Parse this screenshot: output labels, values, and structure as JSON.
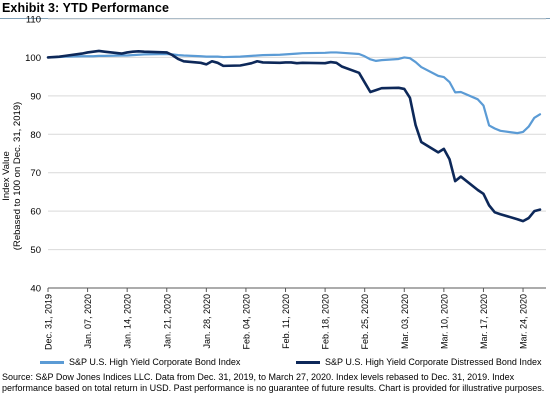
{
  "title": "Exhibit 3: YTD Performance",
  "source": "Source: S&P Dow Jones Indices LLC. Data from Dec. 31, 2019, to March 27, 2020. Index levels rebased to Dec. 31, 2019. Index performance based on total return in USD. Past performance is no guarantee of future results. Chart is provided for illustrative purposes.",
  "colors": {
    "series_light": "#5b9bd5",
    "series_dark": "#0d2859",
    "grid": "#d9d9d9",
    "axis": "#595959"
  },
  "chart_data": {
    "type": "line",
    "ylabel": "Index Value\n(Rebased to 100 on Dec. 31, 2019)",
    "xlabel": "",
    "ylim": [
      40,
      110
    ],
    "yticks": [
      40,
      50,
      60,
      70,
      80,
      90,
      100,
      110
    ],
    "grid": "horizontal",
    "legend_position": "bottom",
    "x": [
      "2019-12-31",
      "2020-01-02",
      "2020-01-03",
      "2020-01-06",
      "2020-01-07",
      "2020-01-08",
      "2020-01-09",
      "2020-01-10",
      "2020-01-13",
      "2020-01-14",
      "2020-01-15",
      "2020-01-16",
      "2020-01-17",
      "2020-01-21",
      "2020-01-22",
      "2020-01-23",
      "2020-01-24",
      "2020-01-27",
      "2020-01-28",
      "2020-01-29",
      "2020-01-30",
      "2020-01-31",
      "2020-02-03",
      "2020-02-04",
      "2020-02-05",
      "2020-02-06",
      "2020-02-07",
      "2020-02-10",
      "2020-02-11",
      "2020-02-12",
      "2020-02-13",
      "2020-02-14",
      "2020-02-18",
      "2020-02-19",
      "2020-02-20",
      "2020-02-21",
      "2020-02-24",
      "2020-02-25",
      "2020-02-26",
      "2020-02-27",
      "2020-02-28",
      "2020-03-02",
      "2020-03-03",
      "2020-03-04",
      "2020-03-05",
      "2020-03-06",
      "2020-03-09",
      "2020-03-10",
      "2020-03-11",
      "2020-03-12",
      "2020-03-13",
      "2020-03-16",
      "2020-03-17",
      "2020-03-18",
      "2020-03-19",
      "2020-03-20",
      "2020-03-23",
      "2020-03-24",
      "2020-03-25",
      "2020-03-26",
      "2020-03-27"
    ],
    "xticks": [
      {
        "date": "2019-12-31",
        "label": "Dec. 31, 2019"
      },
      {
        "date": "2020-01-07",
        "label": "Jan. 07, 2020"
      },
      {
        "date": "2020-01-14",
        "label": "Jan. 14, 2020"
      },
      {
        "date": "2020-01-21",
        "label": "Jan. 21, 2020"
      },
      {
        "date": "2020-01-28",
        "label": "Jan. 28, 2020"
      },
      {
        "date": "2020-02-04",
        "label": "Feb. 04, 2020"
      },
      {
        "date": "2020-02-11",
        "label": "Feb. 11, 2020"
      },
      {
        "date": "2020-02-18",
        "label": "Feb. 18, 2020"
      },
      {
        "date": "2020-02-25",
        "label": "Feb. 25, 2020"
      },
      {
        "date": "2020-03-03",
        "label": "Mar. 03, 2020"
      },
      {
        "date": "2020-03-10",
        "label": "Mar. 10, 2020"
      },
      {
        "date": "2020-03-17",
        "label": "Mar. 17, 2020"
      },
      {
        "date": "2020-03-24",
        "label": "Mar. 24, 2020"
      }
    ],
    "series": [
      {
        "name": "S&P U.S. High Yield Corporate Bond Index",
        "color": "#5b9bd5",
        "values": [
          100.0,
          100.1,
          100.2,
          100.3,
          100.3,
          100.3,
          100.4,
          100.4,
          100.5,
          100.5,
          100.6,
          100.7,
          100.8,
          100.9,
          100.8,
          100.6,
          100.5,
          100.3,
          100.2,
          100.2,
          100.2,
          100.1,
          100.2,
          100.3,
          100.4,
          100.5,
          100.6,
          100.7,
          100.8,
          100.9,
          101.0,
          101.1,
          101.2,
          101.3,
          101.3,
          101.2,
          100.9,
          100.3,
          99.5,
          99.1,
          99.3,
          99.6,
          100.0,
          99.8,
          98.8,
          97.5,
          95.2,
          94.9,
          93.6,
          90.9,
          91.0,
          89.1,
          87.5,
          82.3,
          81.5,
          80.9,
          80.3,
          80.6,
          82.0,
          84.3,
          85.2
        ]
      },
      {
        "name": "S&P U.S. High Yield Corporate Distressed Bond Index",
        "color": "#0d2859",
        "values": [
          100.0,
          100.2,
          100.4,
          101.0,
          101.3,
          101.5,
          101.7,
          101.5,
          101.0,
          101.3,
          101.5,
          101.6,
          101.5,
          101.3,
          100.6,
          99.6,
          99.0,
          98.6,
          98.2,
          99.0,
          98.6,
          97.8,
          97.9,
          98.2,
          98.5,
          99.0,
          98.7,
          98.6,
          98.7,
          98.7,
          98.5,
          98.6,
          98.5,
          98.8,
          98.6,
          97.6,
          96.0,
          93.5,
          91.0,
          91.5,
          92.0,
          92.1,
          91.8,
          89.5,
          82.4,
          78.0,
          75.3,
          76.2,
          73.5,
          67.8,
          69.0,
          65.5,
          64.5,
          61.5,
          59.7,
          59.2,
          57.9,
          57.4,
          58.2,
          60.0,
          60.4
        ]
      }
    ]
  }
}
